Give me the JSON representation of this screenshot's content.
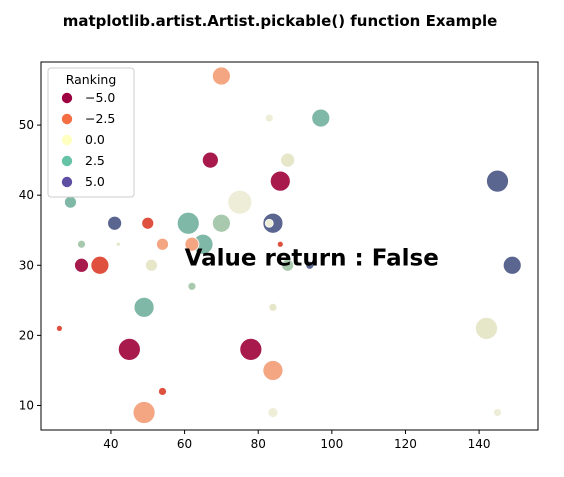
{
  "chart_data": {
    "type": "scatter",
    "title": "matplotlib.artist.Artist.pickable() function Example",
    "xlabel": "",
    "ylabel": "",
    "xlim": [
      21,
      156
    ],
    "ylim": [
      6.5,
      59
    ],
    "xticks": [
      40,
      60,
      80,
      100,
      120,
      140
    ],
    "yticks": [
      10,
      20,
      30,
      40,
      50
    ],
    "grid": false,
    "annotation": {
      "text": "Value return : False",
      "x": 60,
      "y": 30
    },
    "legend": {
      "title": "Ranking",
      "placement": "upper-left",
      "entries": [
        {
          "label": "−5.0",
          "color": "#9e0142"
        },
        {
          "label": "−2.5",
          "color": "#f46d43"
        },
        {
          "label": "0.0",
          "color": "#ffffbf"
        },
        {
          "label": "2.5",
          "color": "#66c2a5"
        },
        {
          "label": "5.0",
          "color": "#5e4fa2"
        }
      ]
    },
    "points": [
      {
        "x": 70,
        "y": 57,
        "color": "#f4a582",
        "size": 9
      },
      {
        "x": 97,
        "y": 51,
        "color": "#7fb8a6",
        "size": 9
      },
      {
        "x": 83,
        "y": 51,
        "color": "#eeeed8",
        "size": 4
      },
      {
        "x": 88,
        "y": 45,
        "color": "#e6e6c8",
        "size": 7
      },
      {
        "x": 67,
        "y": 45,
        "color": "#a81a4c",
        "size": 8
      },
      {
        "x": 86,
        "y": 42,
        "color": "#a81a4c",
        "size": 10
      },
      {
        "x": 145,
        "y": 42,
        "color": "#5b6690",
        "size": 11
      },
      {
        "x": 75,
        "y": 39,
        "color": "#eeeed8",
        "size": 12
      },
      {
        "x": 29,
        "y": 39,
        "color": "#7fb8a6",
        "size": 6
      },
      {
        "x": 41,
        "y": 36,
        "color": "#5b6690",
        "size": 7
      },
      {
        "x": 50,
        "y": 36,
        "color": "#e0503f",
        "size": 6
      },
      {
        "x": 61,
        "y": 36,
        "color": "#7fb8a6",
        "size": 11
      },
      {
        "x": 70,
        "y": 36,
        "color": "#a8c9ae",
        "size": 9
      },
      {
        "x": 84,
        "y": 36,
        "color": "#5b6690",
        "size": 10
      },
      {
        "x": 83,
        "y": 36,
        "color": "#eeeed8",
        "size": 4
      },
      {
        "x": 65,
        "y": 33,
        "color": "#7fb8a6",
        "size": 10
      },
      {
        "x": 62,
        "y": 33,
        "color": "#f4a582",
        "size": 7
      },
      {
        "x": 54,
        "y": 33,
        "color": "#f4a582",
        "size": 6
      },
      {
        "x": 32,
        "y": 33,
        "color": "#a8c9ae",
        "size": 4
      },
      {
        "x": 42,
        "y": 33,
        "color": "#e6e6c8",
        "size": 2
      },
      {
        "x": 86,
        "y": 33,
        "color": "#e0503f",
        "size": 3
      },
      {
        "x": 32,
        "y": 30,
        "color": "#a81a4c",
        "size": 7
      },
      {
        "x": 37,
        "y": 30,
        "color": "#e0503f",
        "size": 9
      },
      {
        "x": 51,
        "y": 30,
        "color": "#e6e6c8",
        "size": 6
      },
      {
        "x": 88,
        "y": 30,
        "color": "#a8c9ae",
        "size": 6
      },
      {
        "x": 94,
        "y": 30,
        "color": "#5b6690",
        "size": 4
      },
      {
        "x": 149,
        "y": 30,
        "color": "#5b6690",
        "size": 9
      },
      {
        "x": 62,
        "y": 27,
        "color": "#a8c9ae",
        "size": 4
      },
      {
        "x": 84,
        "y": 24,
        "color": "#e6e6c8",
        "size": 4
      },
      {
        "x": 49,
        "y": 24,
        "color": "#7fb8a6",
        "size": 10
      },
      {
        "x": 26,
        "y": 21,
        "color": "#e0503f",
        "size": 3
      },
      {
        "x": 142,
        "y": 21,
        "color": "#e6e6c8",
        "size": 11
      },
      {
        "x": 45,
        "y": 18,
        "color": "#a81a4c",
        "size": 11
      },
      {
        "x": 78,
        "y": 18,
        "color": "#a81a4c",
        "size": 11
      },
      {
        "x": 84,
        "y": 15,
        "color": "#f4a582",
        "size": 10
      },
      {
        "x": 54,
        "y": 12,
        "color": "#e0503f",
        "size": 4
      },
      {
        "x": 49,
        "y": 9,
        "color": "#f4a582",
        "size": 11
      },
      {
        "x": 84,
        "y": 9,
        "color": "#eeeed8",
        "size": 5
      },
      {
        "x": 145,
        "y": 9,
        "color": "#eeeed8",
        "size": 4
      }
    ]
  }
}
